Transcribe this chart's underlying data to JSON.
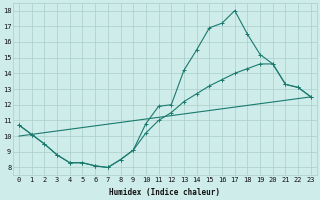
{
  "xlabel": "Humidex (Indice chaleur)",
  "background_color": "#ceecea",
  "grid_color": "#aaceca",
  "line_color": "#1a7a6e",
  "xlim": [
    -0.5,
    23.5
  ],
  "ylim": [
    7.5,
    18.5
  ],
  "yticks": [
    8,
    9,
    10,
    11,
    12,
    13,
    14,
    15,
    16,
    17,
    18
  ],
  "xticks": [
    0,
    1,
    2,
    3,
    4,
    5,
    6,
    7,
    8,
    9,
    10,
    11,
    12,
    13,
    14,
    15,
    16,
    17,
    18,
    19,
    20,
    21,
    22,
    23
  ],
  "series": [
    {
      "x": [
        0,
        1,
        2,
        3,
        4,
        5,
        6,
        7,
        8,
        9,
        10,
        11,
        12,
        13,
        14,
        15,
        16,
        17,
        18,
        19,
        20,
        21,
        22,
        23
      ],
      "y": [
        10.7,
        10.1,
        9.5,
        8.8,
        8.3,
        8.3,
        8.1,
        8.0,
        8.5,
        9.1,
        10.8,
        11.9,
        12.0,
        14.2,
        15.5,
        16.9,
        17.2,
        18.0,
        16.5,
        15.2,
        14.6,
        13.3,
        13.1,
        12.5
      ],
      "markers": true
    },
    {
      "x": [
        0,
        1,
        2,
        3,
        4,
        5,
        6,
        7,
        8,
        9,
        10,
        11,
        12,
        13,
        14,
        15,
        16,
        17,
        18,
        19,
        20,
        21,
        22,
        23
      ],
      "y": [
        10.7,
        10.1,
        9.5,
        8.8,
        8.3,
        8.3,
        8.1,
        8.0,
        8.5,
        9.1,
        10.2,
        11.0,
        11.5,
        12.2,
        12.7,
        13.2,
        13.6,
        14.0,
        14.3,
        14.6,
        14.6,
        13.3,
        13.1,
        12.5
      ],
      "markers": true
    },
    {
      "x": [
        0,
        23
      ],
      "y": [
        10.0,
        12.5
      ],
      "markers": false
    }
  ]
}
